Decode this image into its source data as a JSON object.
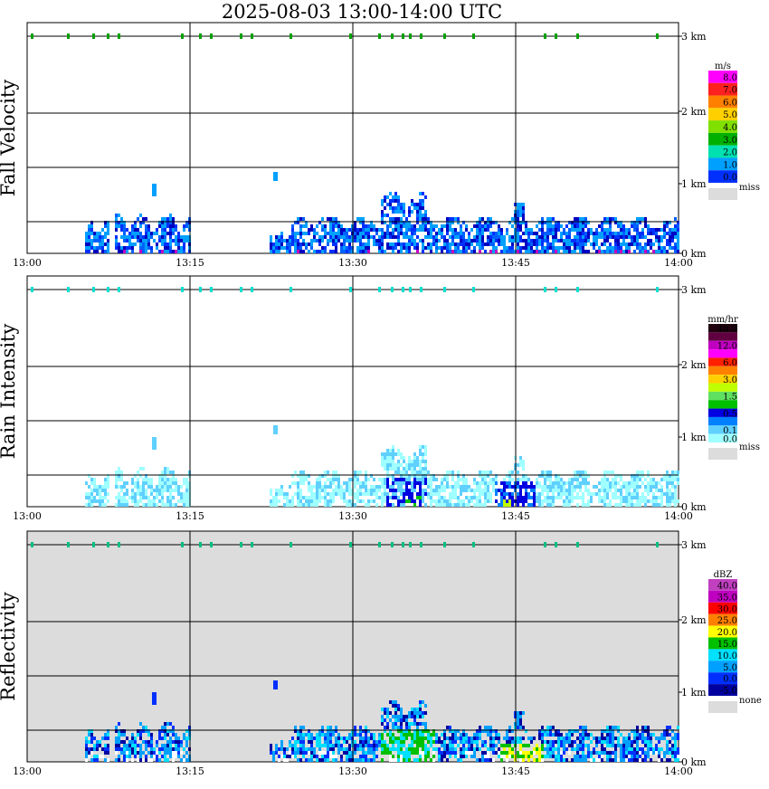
{
  "title": "2025-08-03  13:00-14:00 UTC",
  "time_ticks": [
    "13:00",
    "13:15",
    "13:30",
    "13:45",
    "14:00"
  ],
  "height_ticks": [
    "0 km",
    "1 km",
    "2 km",
    "3 km"
  ],
  "panels": [
    {
      "label": "Fall Velocity",
      "unit": "m/s",
      "legend": [
        {
          "v": "8.0",
          "c": "#ff00ff"
        },
        {
          "v": "7.0",
          "c": "#ff2020"
        },
        {
          "v": "6.0",
          "c": "#ff8000"
        },
        {
          "v": "5.0",
          "c": "#ffd000"
        },
        {
          "v": "4.0",
          "c": "#80e000"
        },
        {
          "v": "3.0",
          "c": "#00b000"
        },
        {
          "v": "2.0",
          "c": "#00e0b0"
        },
        {
          "v": "1.0",
          "c": "#00a0ff"
        },
        {
          "v": "0.0",
          "c": "#0030ff"
        }
      ],
      "miss": "miss"
    },
    {
      "label": "Rain Intensity",
      "unit": "mm/hr",
      "legend": [
        {
          "v": "48.0",
          "c": "#200010"
        },
        {
          "v": "",
          "c": "#600040"
        },
        {
          "v": "12.0",
          "c": "#c000c0"
        },
        {
          "v": "",
          "c": "#ff00ff"
        },
        {
          "v": "6.0",
          "c": "#ff2000"
        },
        {
          "v": "",
          "c": "#ff8000"
        },
        {
          "v": "3.0",
          "c": "#ffd000"
        },
        {
          "v": "",
          "c": "#c0ff00"
        },
        {
          "v": "1.5",
          "c": "#60e060"
        },
        {
          "v": "",
          "c": "#00c000"
        },
        {
          "v": "0.5",
          "c": "#0000e0"
        },
        {
          "v": "",
          "c": "#0080ff"
        },
        {
          "v": "0.1",
          "c": "#60d0ff"
        },
        {
          "v": "0.0",
          "c": "#a0ffff"
        }
      ],
      "miss": "miss"
    },
    {
      "label": "Reflectivity",
      "unit": "dBZ",
      "legend": [
        {
          "v": "40.0",
          "c": "#c040c0"
        },
        {
          "v": "35.0",
          "c": "#c000c0"
        },
        {
          "v": "30.0",
          "c": "#ff0000"
        },
        {
          "v": "25.0",
          "c": "#ff8000"
        },
        {
          "v": "20.0",
          "c": "#ffff00"
        },
        {
          "v": "15.0",
          "c": "#00c000"
        },
        {
          "v": "10.0",
          "c": "#00e0ff"
        },
        {
          "v": "5.0",
          "c": "#00a0ff"
        },
        {
          "v": "0.0",
          "c": "#0030ff"
        },
        {
          "v": "-5.0",
          "c": "#0000a0"
        }
      ],
      "miss": "none"
    }
  ],
  "chart_data": {
    "type": "heatmap",
    "title": "2025-08-03  13:00-14:00 UTC",
    "x_range": [
      "13:00",
      "14:00"
    ],
    "y_range_km": [
      0,
      3.3
    ],
    "grid": true,
    "legend_placement": "right",
    "series": [
      {
        "name": "Fall Velocity",
        "unit": "m/s",
        "colorbar": [
          0.0,
          1.0,
          2.0,
          3.0,
          4.0,
          5.0,
          6.0,
          7.0,
          8.0
        ]
      },
      {
        "name": "Rain Intensity",
        "unit": "mm/hr",
        "colorbar": [
          0.0,
          0.1,
          0.5,
          1.5,
          3.0,
          6.0,
          12.0,
          48.0
        ]
      },
      {
        "name": "Reflectivity",
        "unit": "dBZ",
        "colorbar": [
          -5.0,
          0.0,
          5.0,
          10.0,
          15.0,
          20.0,
          25.0,
          30.0,
          35.0,
          40.0
        ]
      }
    ]
  }
}
